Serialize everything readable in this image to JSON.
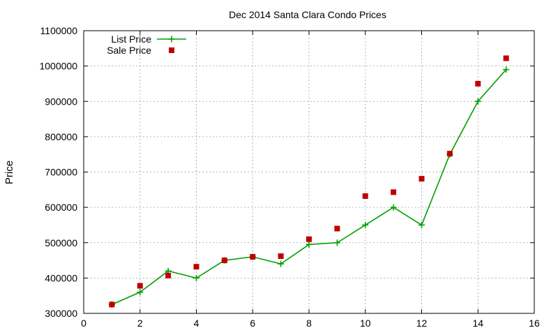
{
  "chart_data": {
    "type": "line",
    "title": "Dec 2014 Santa Clara Condo Prices",
    "xlabel": "",
    "ylabel": "Price",
    "xlim": [
      0,
      16
    ],
    "ylim": [
      300000,
      1100000
    ],
    "grid": true,
    "legend_position": "top-left",
    "x_ticks": [
      0,
      2,
      4,
      6,
      8,
      10,
      12,
      14,
      16
    ],
    "y_ticks": [
      300000,
      400000,
      500000,
      600000,
      700000,
      800000,
      900000,
      1000000,
      1100000
    ],
    "x_tick_labels": [
      "0",
      "2",
      "4",
      "6",
      "8",
      "10",
      "12",
      "14",
      "16"
    ],
    "y_tick_labels": [
      "300000",
      "400000",
      "500000",
      "600000",
      "700000",
      "800000",
      "900000",
      "1000000",
      "1100000"
    ],
    "x": [
      1,
      2,
      3,
      4,
      5,
      6,
      7,
      8,
      9,
      10,
      11,
      12,
      13,
      14,
      15
    ],
    "series": [
      {
        "name": "List Price",
        "style": "line+plus",
        "color": "#00a000",
        "values": [
          325000,
          360000,
          420000,
          400000,
          450000,
          460000,
          440000,
          495000,
          500000,
          550000,
          600000,
          550000,
          750000,
          900000,
          990000
        ]
      },
      {
        "name": "Sale Price",
        "style": "square",
        "color": "#c00000",
        "values": [
          325000,
          378000,
          407000,
          432000,
          450000,
          460000,
          462000,
          510000,
          540000,
          632000,
          643000,
          681000,
          752000,
          950000,
          1022000
        ]
      }
    ]
  }
}
